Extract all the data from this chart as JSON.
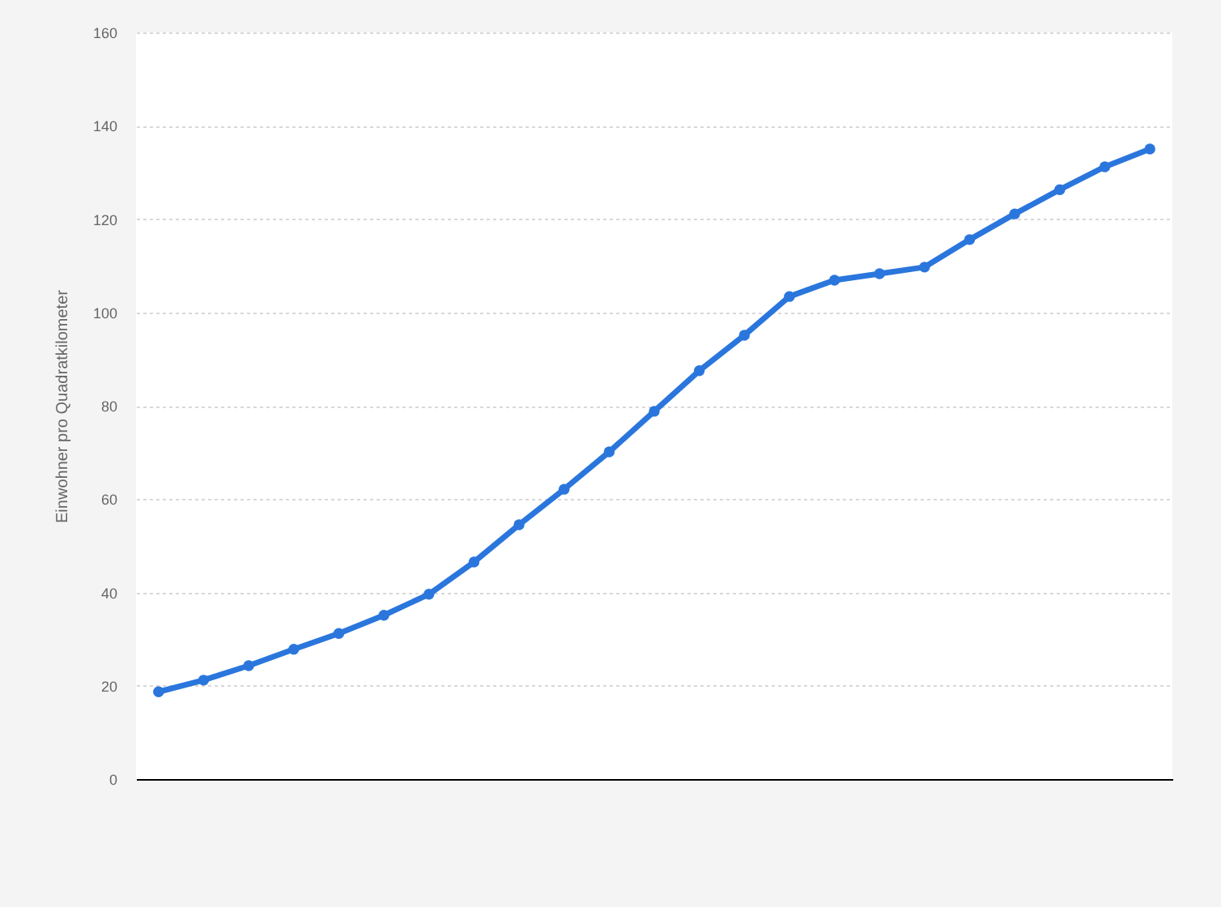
{
  "chart_data": {
    "type": "line",
    "ylabel": "Einwohner pro Quadratkilometer",
    "categories": [
      null,
      null,
      null,
      null,
      null,
      null,
      null,
      null,
      null,
      null,
      null,
      null,
      null,
      null,
      null,
      null,
      null,
      null,
      null,
      null,
      null,
      null,
      null
    ],
    "series": [
      {
        "color": "#2a76dd",
        "values": [
          18.7,
          21.2,
          24.3,
          27.8,
          31.2,
          35.1,
          39.6,
          46.5,
          54.5,
          62.1,
          70.1,
          78.8,
          87.5,
          95.1,
          103.4,
          106.9,
          108.3,
          109.7,
          115.6,
          121.1,
          126.3,
          131.2,
          135.0
        ]
      }
    ],
    "ylim": [
      0,
      160
    ],
    "yticks": [
      0,
      20,
      40,
      60,
      80,
      100,
      120,
      140,
      160
    ],
    "grid": "y",
    "tick_labels": "y",
    "marker": "circle",
    "line_style": "solid"
  }
}
